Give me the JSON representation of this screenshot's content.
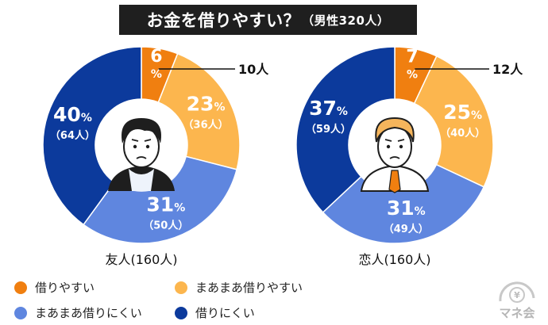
{
  "title": {
    "main": "お金を借りやすい？",
    "sub": "（男性320人）"
  },
  "colors": {
    "borrow_easy": "#F07F10",
    "somewhat_easy": "#FCB64E",
    "somewhat_hard": "#5F86DF",
    "hard": "#0C3A9C"
  },
  "legend": [
    {
      "label": "借りやすい",
      "color": "#F07F10"
    },
    {
      "label": "まあまあ借りやすい",
      "color": "#FCB64E"
    },
    {
      "label": "まあまあ借りにくい",
      "color": "#5F86DF"
    },
    {
      "label": "借りにくい",
      "color": "#0C3A9C"
    }
  ],
  "chart_data": [
    {
      "type": "pie",
      "title": "友人(160人)",
      "categories": [
        "借りやすい",
        "まあまあ借りやすい",
        "まあまあ借りにくい",
        "借りにくい"
      ],
      "values": [
        6,
        23,
        31,
        40
      ],
      "counts": [
        10,
        36,
        50,
        64
      ],
      "unit": "%",
      "count_unit": "人",
      "icon": "casual-man-icon",
      "callout": "10人"
    },
    {
      "type": "pie",
      "title": "恋人(160人)",
      "categories": [
        "借りやすい",
        "まあまあ借りやすい",
        "まあまあ借りにくい",
        "借りにくい"
      ],
      "values": [
        7,
        25,
        31,
        37
      ],
      "counts": [
        12,
        40,
        49,
        59
      ],
      "unit": "%",
      "count_unit": "人",
      "icon": "businessman-icon",
      "callout": "12人"
    }
  ],
  "brand": {
    "logo_text": "マネ会",
    "logo_icon": "yen-coin-icon"
  }
}
